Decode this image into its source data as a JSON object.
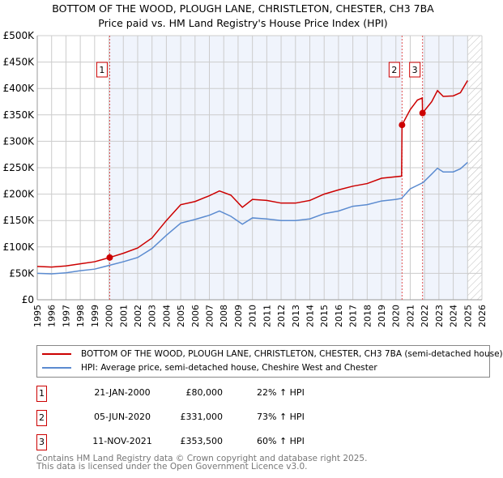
{
  "chart_data": {
    "type": "line",
    "title": "BOTTOM OF THE WOOD, PLOUGH LANE, CHRISTLETON, CHESTER, CH3 7BA",
    "subtitle": "Price paid vs. HM Land Registry's House Price Index (HPI)",
    "xlim": [
      1995,
      2026
    ],
    "ylim": [
      0,
      500000
    ],
    "x_ticks": [
      "1995",
      "1996",
      "1997",
      "1998",
      "1999",
      "2000",
      "2001",
      "2002",
      "2003",
      "2004",
      "2005",
      "2006",
      "2007",
      "2008",
      "2009",
      "2010",
      "2011",
      "2012",
      "2013",
      "2014",
      "2015",
      "2016",
      "2017",
      "2018",
      "2019",
      "2020",
      "2021",
      "2022",
      "2023",
      "2024",
      "2025",
      "2026"
    ],
    "y_ticks": [
      {
        "v": 0,
        "l": "£0"
      },
      {
        "v": 50000,
        "l": "£50K"
      },
      {
        "v": 100000,
        "l": "£100K"
      },
      {
        "v": 150000,
        "l": "£150K"
      },
      {
        "v": 200000,
        "l": "£200K"
      },
      {
        "v": 250000,
        "l": "£250K"
      },
      {
        "v": 300000,
        "l": "£300K"
      },
      {
        "v": 350000,
        "l": "£350K"
      },
      {
        "v": 400000,
        "l": "£400K"
      },
      {
        "v": 450000,
        "l": "£450K"
      },
      {
        "v": 500000,
        "l": "£500K"
      }
    ],
    "grid": true,
    "forecast_from": 2025.0,
    "series": [
      {
        "name": "BOTTOM OF THE WOOD, PLOUGH LANE, CHRISTLETON, CHESTER, CH3 7BA (semi-detached house)",
        "color": "#cc0000",
        "points": [
          [
            1995,
            63000
          ],
          [
            1996,
            62000
          ],
          [
            1997,
            64000
          ],
          [
            1998,
            68000
          ],
          [
            1999,
            72000
          ],
          [
            2000.05,
            80000
          ],
          [
            2001,
            88000
          ],
          [
            2002,
            98000
          ],
          [
            2003,
            117000
          ],
          [
            2004,
            150000
          ],
          [
            2005,
            180000
          ],
          [
            2006,
            186000
          ],
          [
            2007,
            197000
          ],
          [
            2007.7,
            206000
          ],
          [
            2008.5,
            198000
          ],
          [
            2009.3,
            175000
          ],
          [
            2010,
            190000
          ],
          [
            2011,
            188000
          ],
          [
            2012,
            183000
          ],
          [
            2013,
            183000
          ],
          [
            2014,
            188000
          ],
          [
            2015,
            200000
          ],
          [
            2016,
            208000
          ],
          [
            2017,
            215000
          ],
          [
            2018,
            220000
          ],
          [
            2019,
            230000
          ],
          [
            2020.4,
            234000
          ],
          [
            2020.43,
            331000
          ],
          [
            2021,
            360000
          ],
          [
            2021.5,
            378000
          ],
          [
            2021.84,
            382000
          ],
          [
            2021.86,
            353500
          ],
          [
            2022.5,
            375000
          ],
          [
            2022.9,
            396000
          ],
          [
            2023.3,
            385000
          ],
          [
            2024,
            386000
          ],
          [
            2024.5,
            392000
          ],
          [
            2025,
            415000
          ]
        ]
      },
      {
        "name": "HPI: Average price, semi-detached house, Cheshire West and Chester",
        "color": "#5b8bd0",
        "points": [
          [
            1995,
            50000
          ],
          [
            1996,
            49000
          ],
          [
            1997,
            51000
          ],
          [
            1998,
            55000
          ],
          [
            1999,
            58000
          ],
          [
            2000,
            65000
          ],
          [
            2001,
            72000
          ],
          [
            2002,
            80000
          ],
          [
            2003,
            97000
          ],
          [
            2004,
            122000
          ],
          [
            2005,
            145000
          ],
          [
            2006,
            152000
          ],
          [
            2007,
            160000
          ],
          [
            2007.7,
            168000
          ],
          [
            2008.5,
            158000
          ],
          [
            2009.3,
            143000
          ],
          [
            2010,
            155000
          ],
          [
            2011,
            153000
          ],
          [
            2012,
            150000
          ],
          [
            2013,
            150000
          ],
          [
            2014,
            153000
          ],
          [
            2015,
            163000
          ],
          [
            2016,
            168000
          ],
          [
            2017,
            177000
          ],
          [
            2018,
            180000
          ],
          [
            2019,
            187000
          ],
          [
            2020,
            190000
          ],
          [
            2020.4,
            192000
          ],
          [
            2021,
            210000
          ],
          [
            2021.9,
            222000
          ],
          [
            2022.5,
            238000
          ],
          [
            2022.9,
            249000
          ],
          [
            2023.3,
            242000
          ],
          [
            2024,
            242000
          ],
          [
            2024.5,
            248000
          ],
          [
            2025,
            260000
          ]
        ]
      }
    ],
    "sales": [
      {
        "id": "1",
        "date": "21-JAN-2000",
        "x": 2000.05,
        "price": 80000,
        "price_label": "£80,000",
        "hpi": "22% ↑ HPI"
      },
      {
        "id": "2",
        "date": "05-JUN-2020",
        "x": 2020.43,
        "price": 331000,
        "price_label": "£331,000",
        "hpi": "73% ↑ HPI"
      },
      {
        "id": "3",
        "date": "11-NOV-2021",
        "x": 2021.86,
        "price": 353500,
        "price_label": "£353,500",
        "hpi": "60% ↑ HPI"
      }
    ]
  },
  "legend": {
    "property": "BOTTOM OF THE WOOD, PLOUGH LANE, CHRISTLETON, CHESTER, CH3 7BA (semi-detached house)",
    "hpi": "HPI: Average price, semi-detached house, Cheshire West and Chester"
  },
  "footer": {
    "line1": "Contains HM Land Registry data © Crown copyright and database right 2025.",
    "line2": "This data is licensed under the Open Government Licence v3.0."
  }
}
